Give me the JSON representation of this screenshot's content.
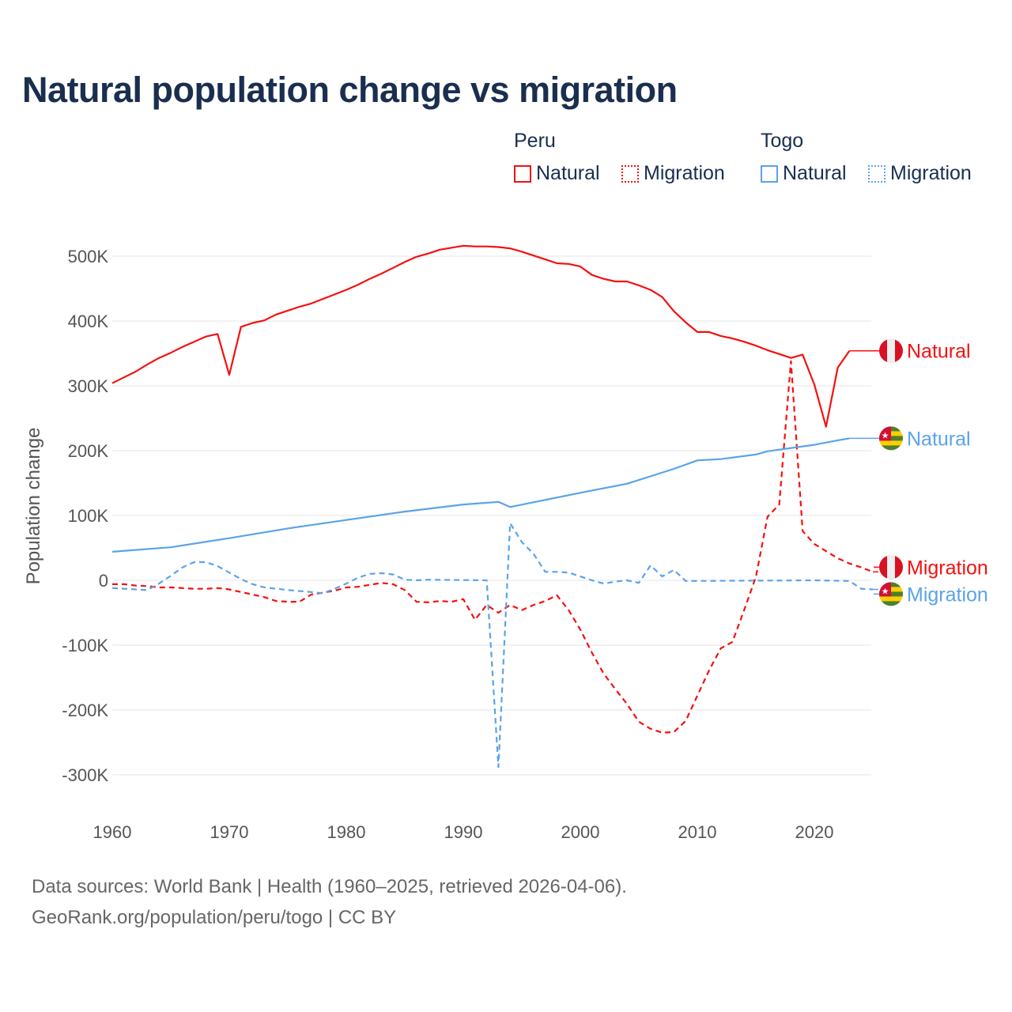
{
  "chart_data": {
    "type": "line",
    "title": "Natural population change vs migration",
    "xlabel": "",
    "ylabel": "Population change",
    "xlim": [
      1960,
      2025
    ],
    "ylim": [
      -300000,
      500000
    ],
    "x_ticks": [
      "1960",
      "1970",
      "1980",
      "1990",
      "2000",
      "2010",
      "2020"
    ],
    "y_ticks": [
      {
        "v": 500000,
        "label": "500K"
      },
      {
        "v": 400000,
        "label": "400K"
      },
      {
        "v": 300000,
        "label": "300K"
      },
      {
        "v": 200000,
        "label": "200K"
      },
      {
        "v": 100000,
        "label": "100K"
      },
      {
        "v": 0,
        "label": "0"
      },
      {
        "v": -100000,
        "label": "-100K"
      },
      {
        "v": -200000,
        "label": "-200K"
      },
      {
        "v": -300000,
        "label": "-300K"
      }
    ],
    "legend": {
      "placement": "top-right",
      "groups": [
        {
          "country": "Peru",
          "items": [
            "Natural",
            "Migration"
          ]
        },
        {
          "country": "Togo",
          "items": [
            "Natural",
            "Migration"
          ]
        }
      ]
    },
    "series": [
      {
        "name": "Natural",
        "country": "Peru",
        "color": "#f51010",
        "dash": false,
        "flag": "peru",
        "x": [
          1960,
          1961,
          1962,
          1963,
          1964,
          1965,
          1966,
          1967,
          1968,
          1969,
          1970,
          1971,
          1972,
          1973,
          1974,
          1975,
          1976,
          1977,
          1978,
          1979,
          1980,
          1981,
          1982,
          1983,
          1984,
          1985,
          1986,
          1987,
          1988,
          1989,
          1990,
          1991,
          1992,
          1993,
          1994,
          1995,
          1996,
          1997,
          1998,
          1999,
          2000,
          2001,
          2002,
          2003,
          2004,
          2005,
          2006,
          2007,
          2008,
          2009,
          2010,
          2011,
          2012,
          2013,
          2014,
          2015,
          2016,
          2017,
          2018,
          2019,
          2020,
          2021,
          2022,
          2023
        ],
        "values": [
          304,
          313,
          322,
          333,
          343,
          351,
          360,
          368,
          376,
          380,
          317,
          391,
          397,
          401,
          410,
          416,
          422,
          427,
          434,
          441,
          448,
          456,
          465,
          473,
          482,
          491,
          499,
          504,
          510,
          513,
          516,
          515,
          515,
          514,
          512,
          507,
          501,
          495,
          489,
          488,
          484,
          471,
          465,
          461,
          461,
          455,
          448,
          437,
          415,
          398,
          383,
          383,
          377,
          373,
          368,
          362,
          355,
          349,
          343,
          348,
          302,
          237,
          328,
          354
        ]
      },
      {
        "name": "Migration",
        "country": "Peru",
        "color": "#f51010",
        "dash": true,
        "flag": "peru",
        "x": [
          1960,
          1961,
          1962,
          1963,
          1964,
          1965,
          1966,
          1967,
          1968,
          1969,
          1970,
          1971,
          1972,
          1973,
          1974,
          1975,
          1976,
          1977,
          1978,
          1979,
          1980,
          1981,
          1982,
          1983,
          1984,
          1985,
          1986,
          1987,
          1988,
          1989,
          1990,
          1991,
          1992,
          1993,
          1994,
          1995,
          1996,
          1997,
          1998,
          1999,
          2000,
          2001,
          2002,
          2003,
          2004,
          2005,
          2006,
          2007,
          2008,
          2009,
          2010,
          2011,
          2012,
          2013,
          2014,
          2015,
          2016,
          2017,
          2018,
          2019,
          2020,
          2021,
          2022,
          2023,
          2024,
          2025
        ],
        "values": [
          -6,
          -6,
          -8,
          -9,
          -11,
          -11,
          -12,
          -13,
          -13,
          -12,
          -14,
          -18,
          -22,
          -26,
          -32,
          -33,
          -33,
          -22,
          -19,
          -16,
          -11,
          -10,
          -7,
          -4,
          -6,
          -15,
          -33,
          -34,
          -32,
          -33,
          -29,
          -61,
          -38,
          -50,
          -38,
          -46,
          -38,
          -32,
          -23,
          -46,
          -76,
          -112,
          -144,
          -168,
          -191,
          -218,
          -229,
          -235,
          -234,
          -217,
          -178,
          -139,
          -105,
          -95,
          -46,
          5,
          98,
          117,
          338,
          76,
          56,
          45,
          34,
          26,
          20,
          13
        ]
      },
      {
        "name": "Natural",
        "country": "Togo",
        "color": "#5ba3e8",
        "dash": false,
        "flag": "togo",
        "x": [
          1960,
          1965,
          1970,
          1975,
          1980,
          1985,
          1990,
          1993,
          1994,
          2000,
          2004,
          2008,
          2010,
          2012,
          2015,
          2016,
          2020,
          2022,
          2023
        ],
        "values": [
          44,
          51,
          65,
          80,
          93,
          106,
          117,
          121,
          113,
          135,
          149,
          172,
          185,
          187,
          194,
          199,
          209,
          216,
          219
        ]
      },
      {
        "name": "Migration",
        "country": "Togo",
        "color": "#5ba3e8",
        "dash": true,
        "flag": "togo",
        "x": [
          1960,
          1963,
          1964,
          1965,
          1966,
          1967,
          1968,
          1969,
          1970,
          1971,
          1972,
          1973,
          1975,
          1977,
          1978,
          1979,
          1980,
          1981,
          1982,
          1983,
          1984,
          1985,
          1986,
          1987,
          1992,
          1993,
          1994,
          1995,
          1996,
          1997,
          1998,
          1999,
          2000,
          2001,
          2002,
          2003,
          2004,
          2005,
          2006,
          2007,
          2008,
          2009,
          2020,
          2023,
          2024,
          2025
        ],
        "values": [
          -12,
          -15,
          -5,
          7,
          20,
          28,
          28,
          22,
          12,
          2,
          -6,
          -11,
          -15,
          -18,
          -20,
          -13,
          -5,
          4,
          10,
          11,
          9,
          1,
          0,
          1,
          0,
          -288,
          88,
          59,
          41,
          13,
          13,
          12,
          6,
          0,
          -5,
          -2,
          0,
          -4,
          23,
          6,
          16,
          -1,
          0,
          -1,
          -13,
          -14
        ]
      }
    ],
    "units_note": "values in thousands"
  },
  "footer": {
    "line1": "Data sources: World Bank | Health (1960–2025, retrieved 2026-04-06).",
    "line2": "GeoRank.org/population/peru/togo | CC BY"
  }
}
